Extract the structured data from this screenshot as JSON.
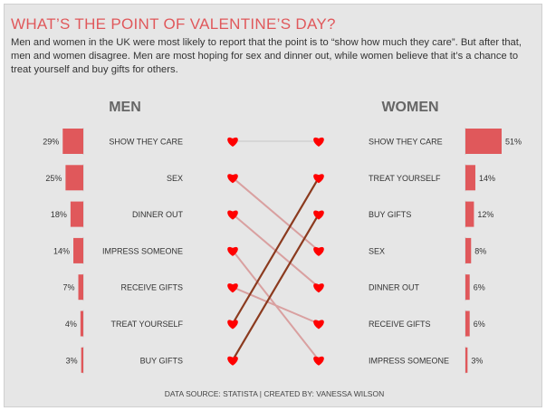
{
  "title": "WHAT’S THE POINT OF VALENTINE’S DAY?",
  "subtitle": "Men and women in the UK were most likely to report that the point is to “show how much they care”. But after that, men and women disagree. Men are most hoping for sex and dinner out, while women believe that it’s a chance to treat yourself and buy gifts for others.",
  "footer": "DATA SOURCE: STATISTA | CREATED BY: VANESSA WILSON",
  "colors": {
    "bar": "#e0585b",
    "heart": "#ff0000",
    "line_up": "#8b3a1e",
    "line_down": "#d9a0a0",
    "line_flat": "#cccccc",
    "text": "#333333",
    "header": "#666666"
  },
  "chart_data": {
    "type": "bar",
    "men": {
      "header": "MEN",
      "categories": [
        "SHOW THEY CARE",
        "SEX",
        "DINNER OUT",
        "IMPRESS SOMEONE",
        "RECEIVE GIFTS",
        "TREAT YOURSELF",
        "BUY GIFTS"
      ],
      "values": [
        29,
        25,
        18,
        14,
        7,
        4,
        3
      ],
      "labels": [
        "29%",
        "25%",
        "18%",
        "14%",
        "7%",
        "4%",
        "3%"
      ]
    },
    "women": {
      "header": "WOMEN",
      "categories": [
        "SHOW THEY CARE",
        "TREAT YOURSELF",
        "BUY GIFTS",
        "SEX",
        "DINNER OUT",
        "RECEIVE GIFTS",
        "IMPRESS SOMEONE"
      ],
      "values": [
        51,
        14,
        12,
        8,
        6,
        6,
        3
      ],
      "labels": [
        "51%",
        "14%",
        "12%",
        "8%",
        "6%",
        "6%",
        "3%"
      ]
    }
  }
}
